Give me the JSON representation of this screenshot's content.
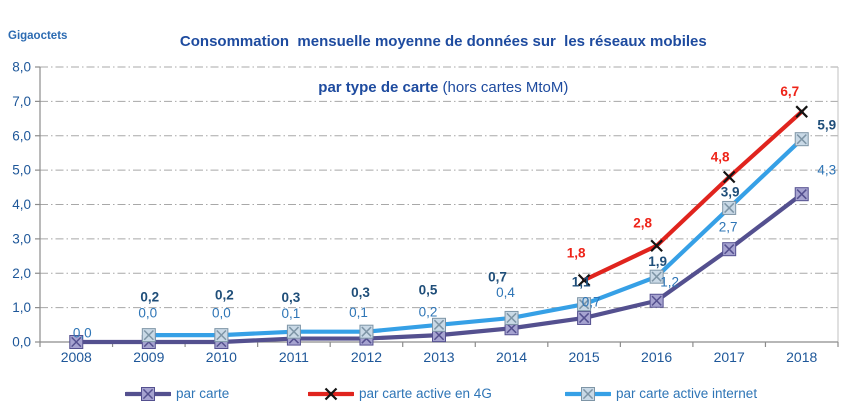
{
  "header": {
    "title_line1": "Consommation  mensuelle moyenne de données sur  les réseaux mobiles",
    "title_line2_bold": "par type de carte ",
    "title_line2_regular": "(hors cartes MtoM)",
    "y_axis_unit": "Gigaoctets"
  },
  "chart_data": {
    "type": "line",
    "title": "Consommation mensuelle moyenne de données sur les réseaux mobiles par type de carte (hors cartes MtoM)",
    "ylabel": "Gigaoctets",
    "categories": [
      "2008",
      "2009",
      "2010",
      "2011",
      "2012",
      "2013",
      "2014",
      "2015",
      "2016",
      "2017",
      "2018"
    ],
    "ylim": [
      0,
      8
    ],
    "y_tick_labels": [
      "0,0",
      "1,0",
      "2,0",
      "3,0",
      "4,0",
      "5,0",
      "6,0",
      "7,0",
      "8,0"
    ],
    "grid": "horizontal-dash-dot",
    "legend_position": "bottom",
    "draw_order": [
      0,
      2,
      1
    ],
    "style": {
      "grid_color": "#A8A8A8",
      "axis_color": "#8C8C8C",
      "plot_border_color": "#C0C0C0",
      "axis_label_color": "#1E5799",
      "title_color": "#1E4B9F",
      "legend_text_color": "#2E75B6"
    },
    "series": [
      {
        "name": "par carte",
        "color": "#54508F",
        "marker": "square-x",
        "marker_fill": "#A6A3D0",
        "marker_stroke": "#54508F",
        "label_color": "#2E75B6",
        "label_bold": false,
        "values": [
          0.0,
          0.0,
          0.0,
          0.1,
          0.1,
          0.2,
          0.4,
          0.7,
          1.2,
          2.7,
          4.3
        ],
        "labels": [
          "0,0",
          "0,0",
          "0,0",
          "0,1",
          "0,1",
          "0,2",
          "0,4",
          "0,7",
          "1,2",
          "2,7",
          "4,3"
        ],
        "label_offsets": [
          [
            6,
            -9
          ],
          [
            -1,
            -29
          ],
          [
            0,
            -29
          ],
          [
            -3,
            -25
          ],
          [
            -8,
            -26
          ],
          [
            -11,
            -23
          ],
          [
            -6,
            -36
          ],
          [
            7,
            -16
          ],
          [
            13,
            -19
          ],
          [
            -1,
            -22
          ],
          [
            25,
            -24
          ]
        ]
      },
      {
        "name": "par carte active en 4G",
        "color": "#E0241E",
        "marker": "cross",
        "marker_stroke": "#131313",
        "label_color": "#EE2419",
        "label_bold": true,
        "values": [
          null,
          null,
          null,
          null,
          null,
          null,
          null,
          1.8,
          2.8,
          4.8,
          6.7
        ],
        "labels": [
          null,
          null,
          null,
          null,
          null,
          null,
          null,
          "1,8",
          "2,8",
          "4,8",
          "6,7"
        ],
        "label_offsets": [
          null,
          null,
          null,
          null,
          null,
          null,
          null,
          [
            -8,
            -27
          ],
          [
            -14,
            -23
          ],
          [
            -9,
            -20
          ],
          [
            -12,
            -20
          ]
        ]
      },
      {
        "name": "par carte active internet",
        "color": "#36A0E6",
        "marker": "square-x",
        "marker_fill": "#C9D9E6",
        "marker_stroke": "#7E95A6",
        "label_color": "#1F4E79",
        "label_bold": true,
        "values": [
          null,
          0.2,
          0.2,
          0.3,
          0.3,
          0.5,
          0.7,
          1.1,
          1.9,
          3.9,
          5.9
        ],
        "labels": [
          null,
          "0,2",
          "0,2",
          "0,3",
          "0,3",
          "0,5",
          "0,7",
          "1,1",
          "1,9",
          "3,9",
          "5,9"
        ],
        "label_offsets": [
          null,
          [
            1,
            -38
          ],
          [
            3,
            -40
          ],
          [
            -3,
            -34
          ],
          [
            -6,
            -39
          ],
          [
            -11,
            -35
          ],
          [
            -14,
            -41
          ],
          [
            -3,
            -22
          ],
          [
            1,
            -15
          ],
          [
            1,
            -16
          ],
          [
            25,
            -14
          ]
        ]
      }
    ]
  }
}
